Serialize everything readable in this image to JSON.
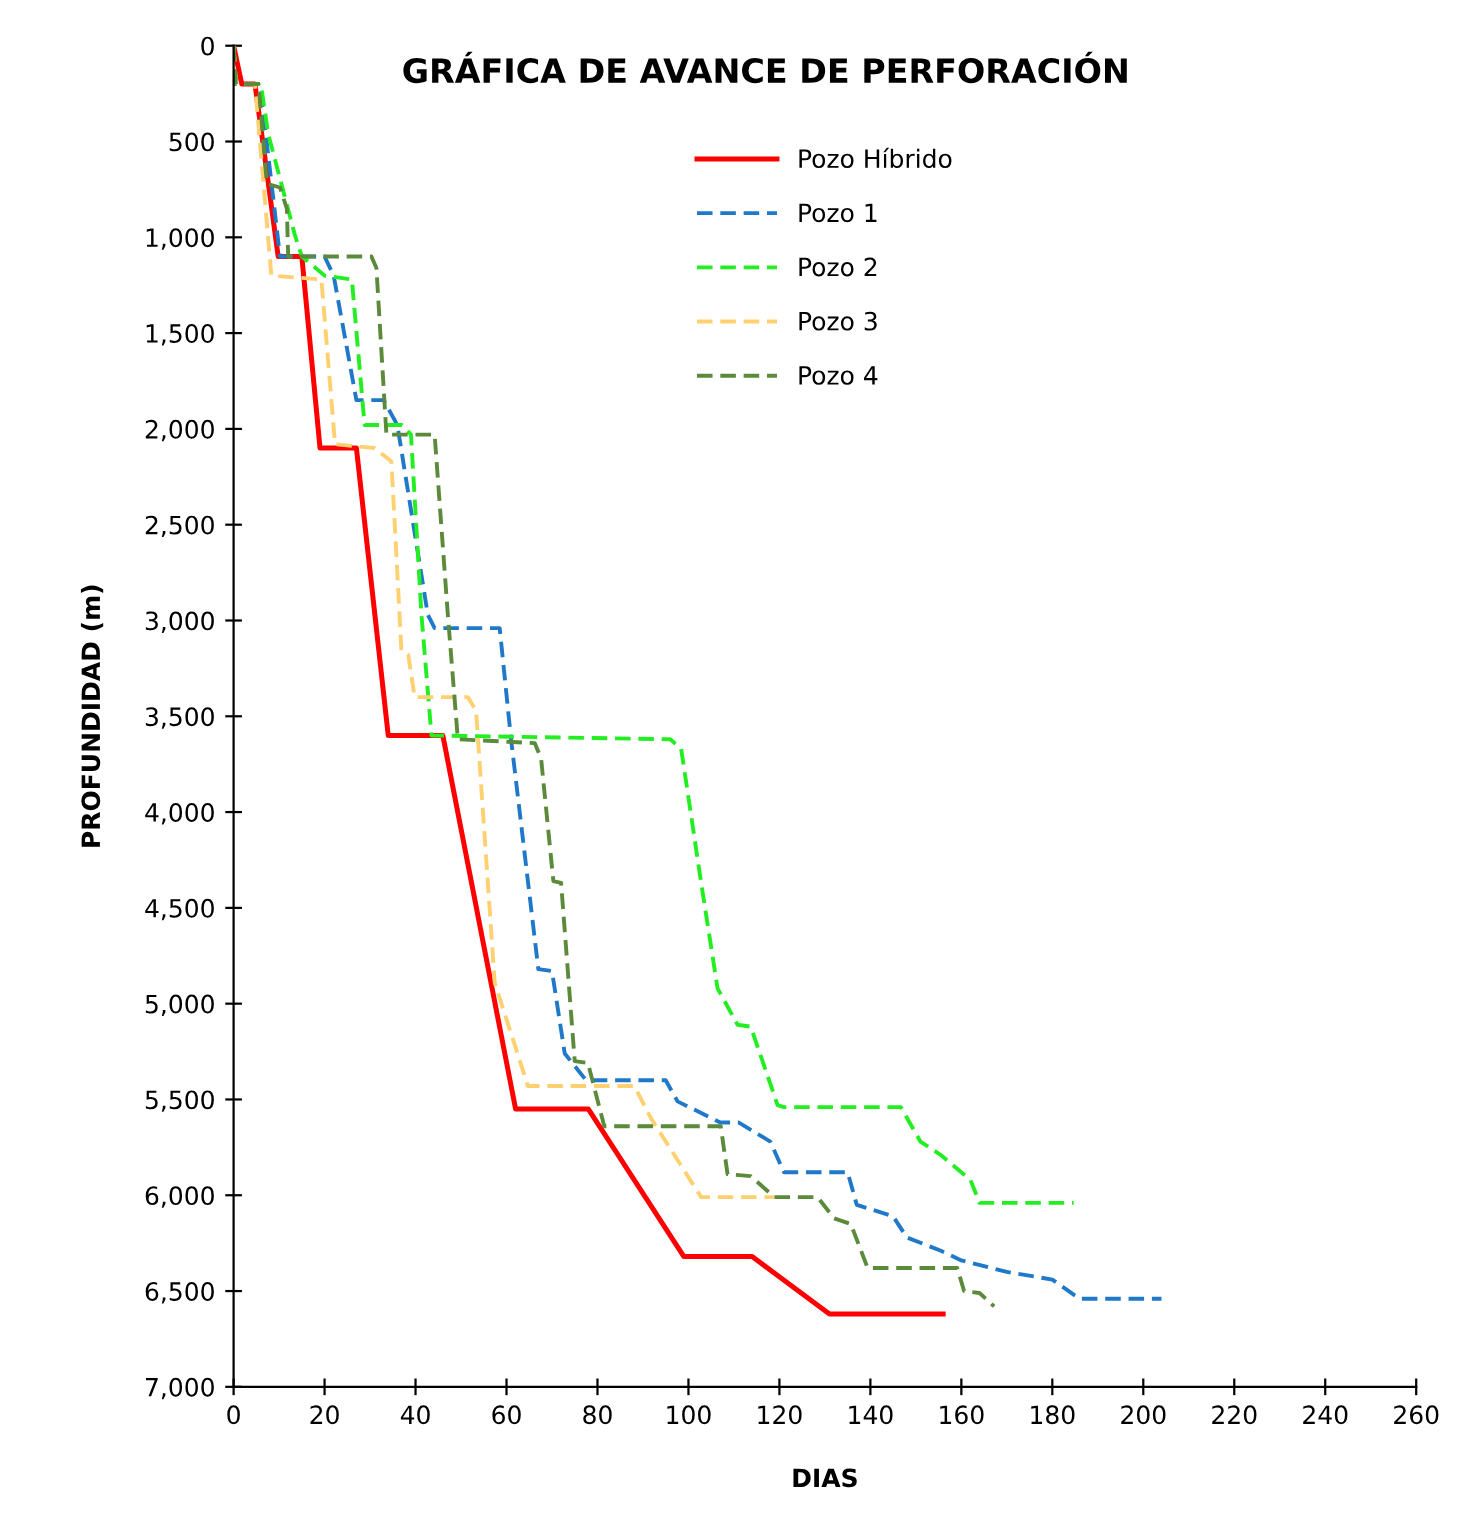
{
  "chart_data": {
    "type": "line",
    "title": "GRÁFICA DE AVANCE DE PERFORACIÓN",
    "xlabel": "DIAS",
    "ylabel": "PROFUNDIDAD (m)",
    "xlim": [
      0,
      260
    ],
    "xticks": [
      0,
      20,
      40,
      60,
      80,
      100,
      120,
      140,
      160,
      180,
      200,
      220,
      240,
      260
    ],
    "ylim": [
      7000,
      0
    ],
    "yticks": [
      0,
      500,
      {
        "value": 1000,
        "label": "1,000"
      },
      {
        "value": 1500,
        "label": "1,500"
      },
      {
        "value": 2000,
        "label": "2,000"
      },
      {
        "value": 2500,
        "label": "2,500"
      },
      {
        "value": 3000,
        "label": "3,000"
      },
      {
        "value": 3500,
        "label": "3,500"
      },
      {
        "value": 4000,
        "label": "4,000"
      },
      {
        "value": 4500,
        "label": "4,500"
      },
      {
        "value": 5000,
        "label": "5,000"
      },
      {
        "value": 5500,
        "label": "5,500"
      },
      {
        "value": 6000,
        "label": "6,000"
      },
      {
        "value": 6500,
        "label": "6,500"
      },
      {
        "value": 7000,
        "label": "7,000"
      }
    ],
    "grid": false,
    "legend": "top",
    "marker": "none",
    "series": [
      {
        "name": "Pozo Híbrido",
        "color": "#ff0000",
        "line_style": "solid",
        "x": [
          0,
          1.8,
          4.7,
          9.8,
          15,
          19,
          27,
          34,
          46,
          62,
          78,
          99,
          114,
          131,
          156
        ],
        "values": [
          0,
          200,
          200,
          1100,
          1100,
          2100,
          2100,
          3600,
          3600,
          5550,
          5550,
          6320,
          6320,
          6620,
          6620
        ]
      },
      {
        "name": "Pozo 1",
        "color": "#1f78c8",
        "line_style": "dashed",
        "x": [
          0,
          0.5,
          5.8,
          10.2,
          20,
          22,
          27,
          33,
          36,
          42.7,
          44.2,
          58.5,
          61,
          67,
          70,
          72.8,
          77.5,
          95,
          97.6,
          107,
          111,
          118,
          121,
          135,
          137,
          145,
          148,
          155.5,
          160,
          170,
          180,
          186,
          204
        ],
        "values": [
          0,
          200,
          200,
          1100,
          1100,
          1200,
          1850,
          1850,
          1980,
          2970,
          3040,
          3040,
          3620,
          4820,
          4830,
          5260,
          5400,
          5400,
          5510,
          5620,
          5620,
          5720,
          5880,
          5880,
          6050,
          6110,
          6220,
          6290,
          6340,
          6400,
          6440,
          6540,
          6540
        ]
      },
      {
        "name": "Pozo 2",
        "color": "#22ee22",
        "line_style": "dashed",
        "x": [
          0,
          0.5,
          6,
          7.6,
          13.5,
          15,
          20,
          26,
          28.8,
          37,
          39,
          41.3,
          43.5,
          96,
          98.4,
          102.8,
          106.4,
          110.8,
          113.7,
          119.6,
          121,
          146.7,
          151,
          155.5,
          162,
          164,
          184.7
        ],
        "values": [
          0,
          200,
          200,
          460,
          990,
          1100,
          1200,
          1220,
          1980,
          1980,
          2030,
          2970,
          3600,
          3620,
          3670,
          4370,
          4920,
          5110,
          5120,
          5530,
          5540,
          5540,
          5720,
          5790,
          5920,
          6040,
          6040
        ]
      },
      {
        "name": "Pozo 3",
        "color": "#ffd070",
        "line_style": "dashed",
        "x": [
          0,
          0.5,
          4.7,
          8.3,
          19.3,
          22.3,
          31,
          34.7,
          36.9,
          38.4,
          39.8,
          51.5,
          53.3,
          57.4,
          64.7,
          88.1,
          91.8,
          102.8,
          118.9
        ],
        "values": [
          0,
          200,
          200,
          1200,
          1220,
          2080,
          2100,
          2170,
          3160,
          3180,
          3400,
          3400,
          3470,
          4890,
          5430,
          5430,
          5600,
          6010,
          6010
        ]
      },
      {
        "name": "Pozo 4",
        "color": "#5a8a3a",
        "line_style": "dashed",
        "x": [
          0,
          0.5,
          5.5,
          7.3,
          10.2,
          11.7,
          12,
          30.3,
          31.4,
          33.6,
          44.2,
          47.1,
          49.3,
          66.2,
          67.6,
          70.3,
          72,
          75,
          77.9,
          81.5,
          107.1,
          108.6,
          113.7,
          118.9,
          128.4,
          132,
          135.7,
          139.4,
          159.1,
          160.6,
          164,
          167.2
        ],
        "values": [
          0,
          200,
          200,
          720,
          740,
          850,
          1100,
          1100,
          1160,
          2030,
          2030,
          2970,
          3620,
          3640,
          3720,
          4360,
          4370,
          5300,
          5310,
          5640,
          5640,
          5890,
          5900,
          6010,
          6010,
          6120,
          6150,
          6380,
          6380,
          6500,
          6510,
          6580
        ]
      }
    ]
  }
}
